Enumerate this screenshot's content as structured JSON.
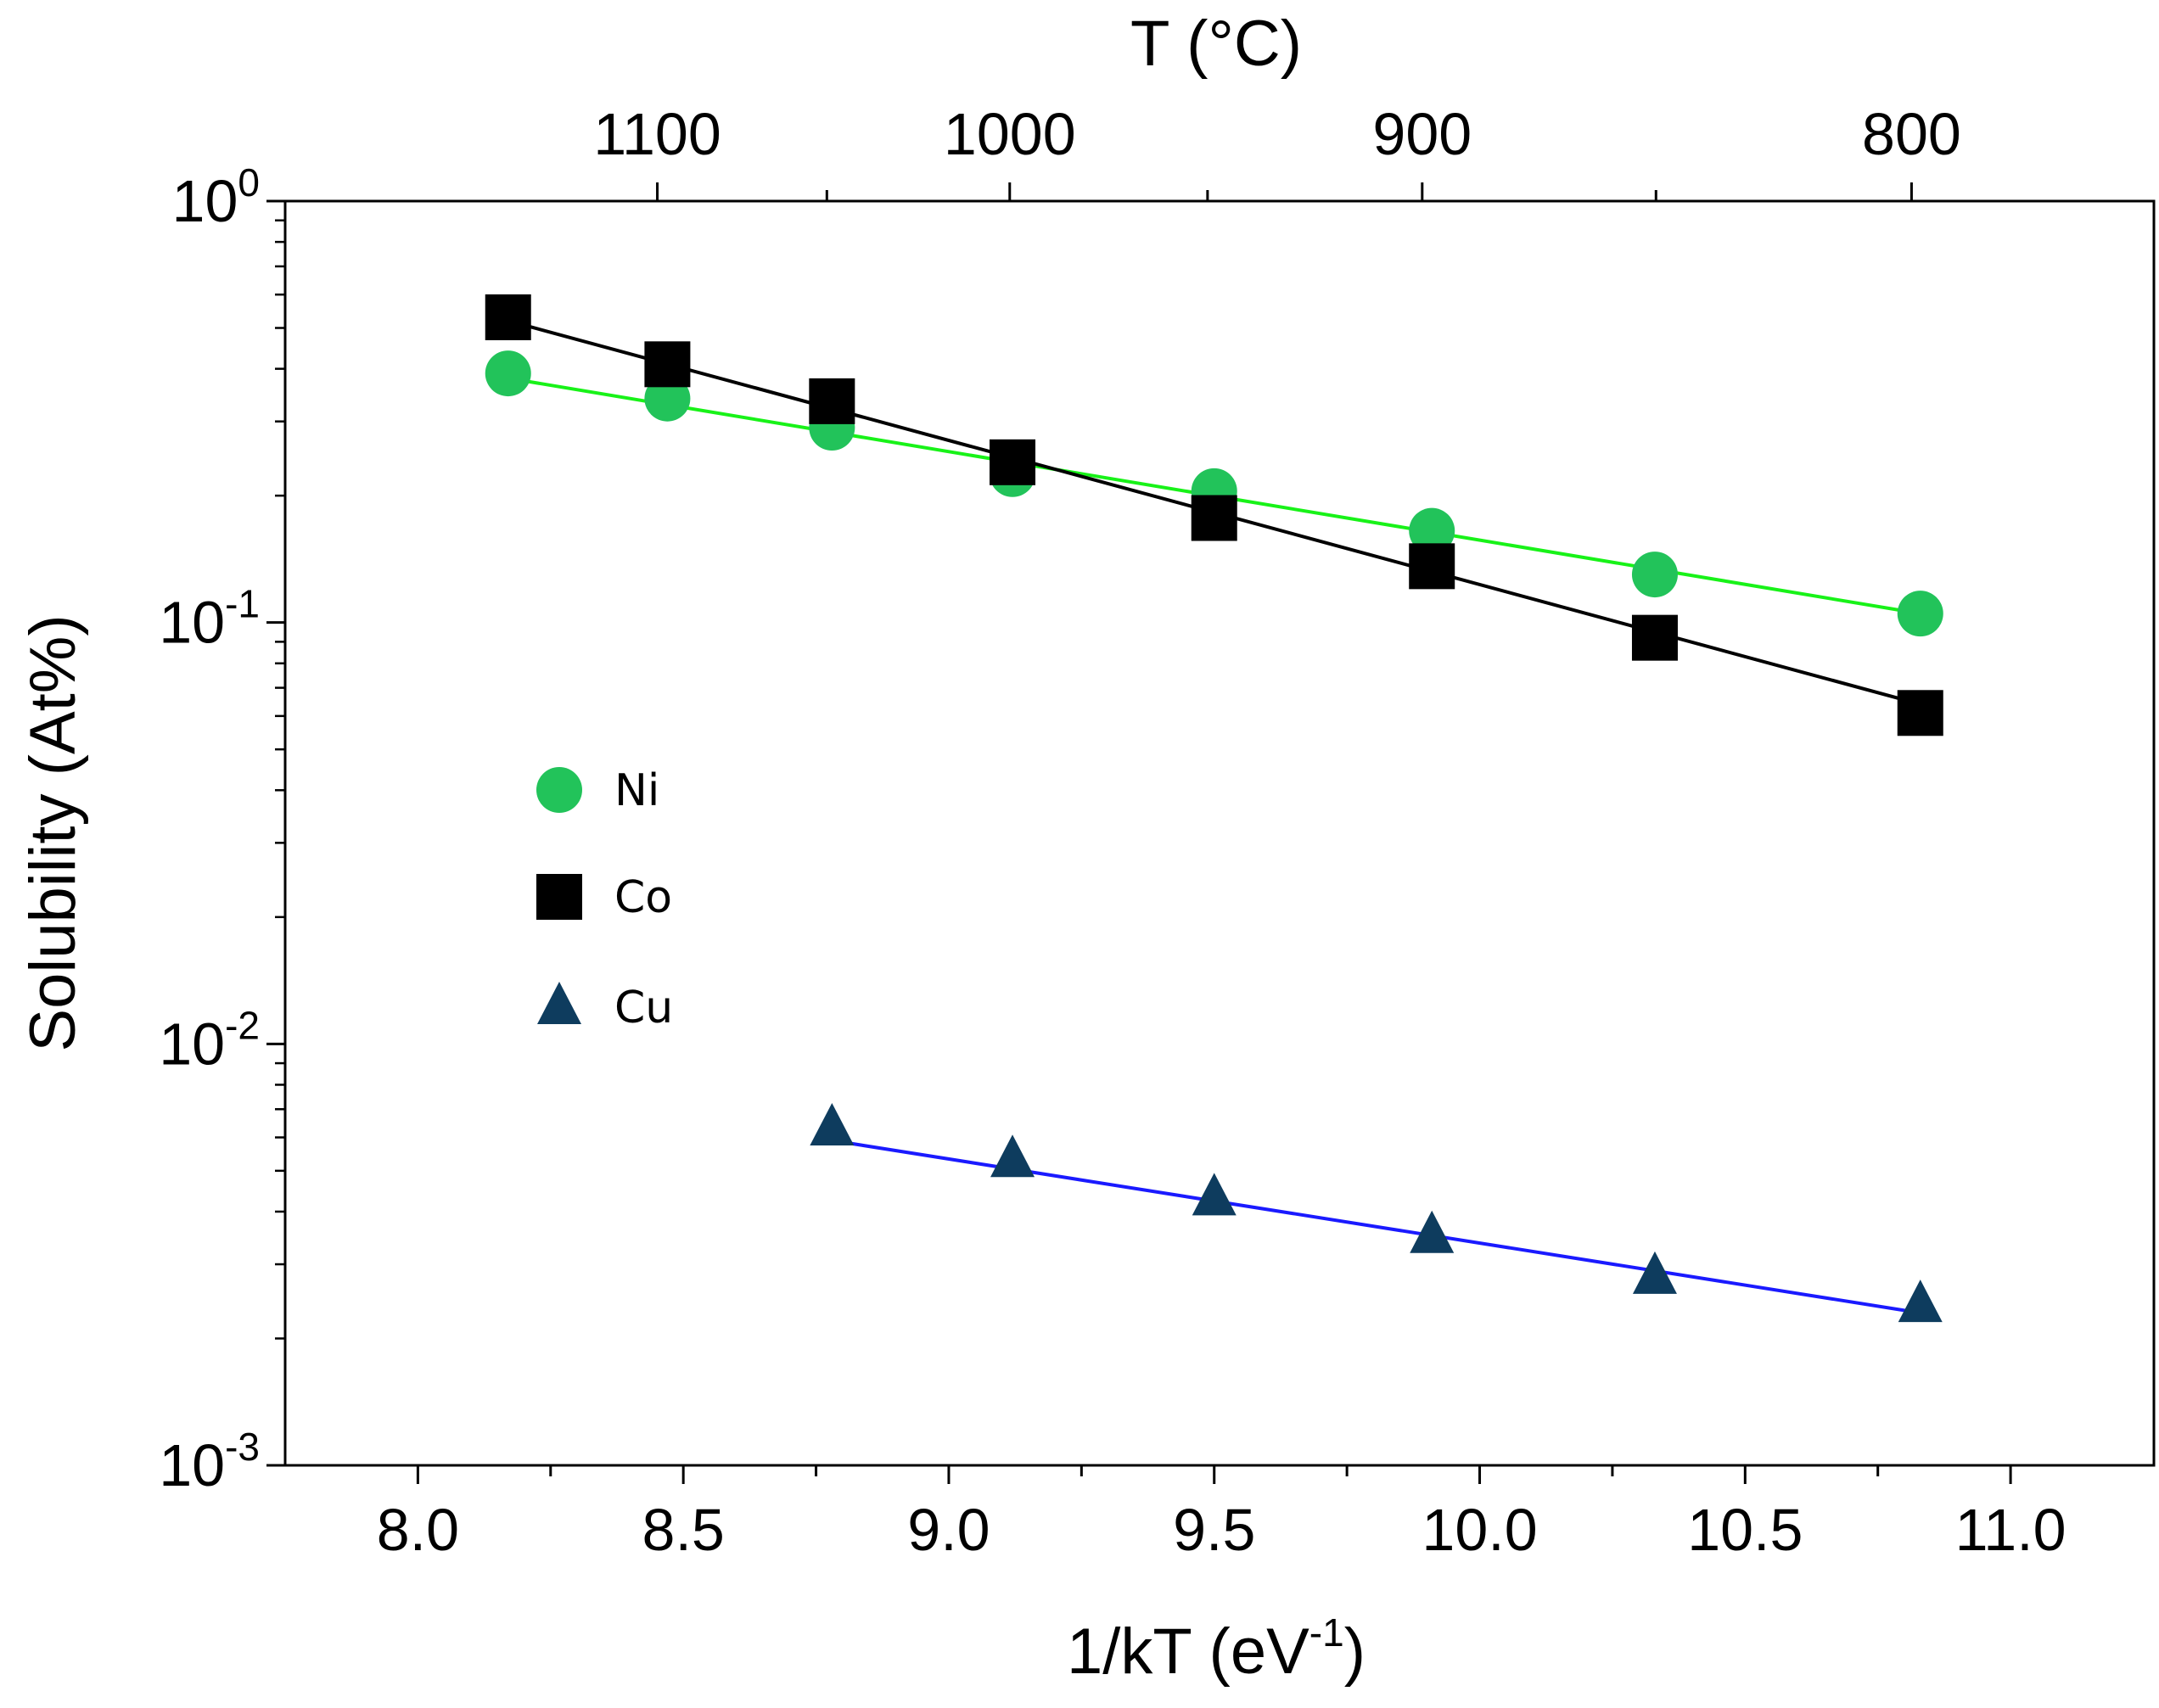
{
  "chart_data": {
    "type": "scatter",
    "xlabel": "1/kT (eV",
    "xlabel_sup": "-1",
    "xlabel_end": ")",
    "ylabel": "Solubility (At%)",
    "top_axis_label": "T (°C)",
    "y_scale": "log",
    "xlim": [
      7.75,
      11.27
    ],
    "ylim": [
      0.001,
      1
    ],
    "x_ticks": [
      {
        "value": 8.0,
        "label": "8.0"
      },
      {
        "value": 8.5,
        "label": "8.5"
      },
      {
        "value": 9.0,
        "label": "9.0"
      },
      {
        "value": 9.5,
        "label": "9.5"
      },
      {
        "value": 10.0,
        "label": "10.0"
      },
      {
        "value": 10.5,
        "label": "10.5"
      },
      {
        "value": 11.0,
        "label": "11.0"
      }
    ],
    "x_minor_ticks": [
      8.25,
      8.75,
      9.25,
      9.75,
      10.25,
      10.75
    ],
    "y_ticks": [
      {
        "value": 1,
        "base": "10",
        "exp": "0"
      },
      {
        "value": 0.1,
        "base": "10",
        "exp": "-1"
      },
      {
        "value": 0.01,
        "base": "10",
        "exp": "-2"
      },
      {
        "value": 0.001,
        "base": "10",
        "exp": "-3"
      }
    ],
    "top_ticks": [
      {
        "celsius": 1100,
        "label": "1100"
      },
      {
        "celsius": 1050,
        "label": ""
      },
      {
        "celsius": 1000,
        "label": "1000"
      },
      {
        "celsius": 950,
        "label": ""
      },
      {
        "celsius": 900,
        "label": "900"
      },
      {
        "celsius": 850,
        "label": ""
      },
      {
        "celsius": 800,
        "label": "800"
      },
      {
        "celsius": 750,
        "label": ""
      }
    ],
    "series": [
      {
        "name": "Ni",
        "marker": "circle",
        "marker_color": "#22c35a",
        "line_color": "#18f218",
        "x": [
          8.17,
          8.47,
          8.78,
          9.12,
          9.5,
          9.91,
          10.33,
          10.83
        ],
        "y": [
          0.39,
          0.34,
          0.29,
          0.225,
          0.205,
          0.165,
          0.13,
          0.105
        ],
        "fit": {
          "x": [
            8.17,
            10.83
          ],
          "y": [
            0.38,
            0.105
          ]
        }
      },
      {
        "name": "Co",
        "marker": "square",
        "marker_color": "#000000",
        "line_color": "#000000",
        "x": [
          8.17,
          8.47,
          8.78,
          9.12,
          9.5,
          9.91,
          10.33,
          10.83
        ],
        "y": [
          0.53,
          0.41,
          0.335,
          0.24,
          0.177,
          0.136,
          0.092,
          0.061
        ],
        "fit": {
          "x": [
            8.17,
            10.83
          ],
          "y": [
            0.52,
            0.064
          ]
        }
      },
      {
        "name": "Cu",
        "marker": "triangle",
        "marker_color": "#0e3c5e",
        "line_color": "#1a1aff",
        "x": [
          8.78,
          9.12,
          9.5,
          9.91,
          10.33,
          10.83
        ],
        "y": [
          0.0063,
          0.0053,
          0.0043,
          0.0035,
          0.0028,
          0.0024
        ],
        "fit": {
          "x": [
            8.78,
            10.83
          ],
          "y": [
            0.0059,
            0.0023
          ]
        }
      }
    ],
    "legend_position": "center-left"
  }
}
